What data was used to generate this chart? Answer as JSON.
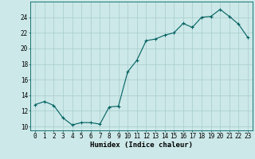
{
  "x": [
    0,
    1,
    2,
    3,
    4,
    5,
    6,
    7,
    8,
    9,
    10,
    11,
    12,
    13,
    14,
    15,
    16,
    17,
    18,
    19,
    20,
    21,
    22,
    23
  ],
  "y": [
    12.8,
    13.2,
    12.7,
    11.1,
    10.2,
    10.5,
    10.5,
    10.3,
    12.5,
    12.6,
    17.0,
    18.5,
    21.0,
    21.2,
    21.7,
    22.0,
    23.2,
    22.7,
    24.0,
    24.1,
    25.0,
    24.1,
    23.1,
    21.4
  ],
  "xlabel": "Humidex (Indice chaleur)",
  "xlim": [
    -0.5,
    23.5
  ],
  "ylim": [
    9.5,
    26.0
  ],
  "yticks": [
    10,
    12,
    14,
    16,
    18,
    20,
    22,
    24
  ],
  "xticks": [
    0,
    1,
    2,
    3,
    4,
    5,
    6,
    7,
    8,
    9,
    10,
    11,
    12,
    13,
    14,
    15,
    16,
    17,
    18,
    19,
    20,
    21,
    22,
    23
  ],
  "line_color": "#006060",
  "marker": "+",
  "bg_color": "#cce8e8",
  "grid_color": "#a8cccc",
  "label_fontsize": 6.5,
  "tick_fontsize": 5.5
}
